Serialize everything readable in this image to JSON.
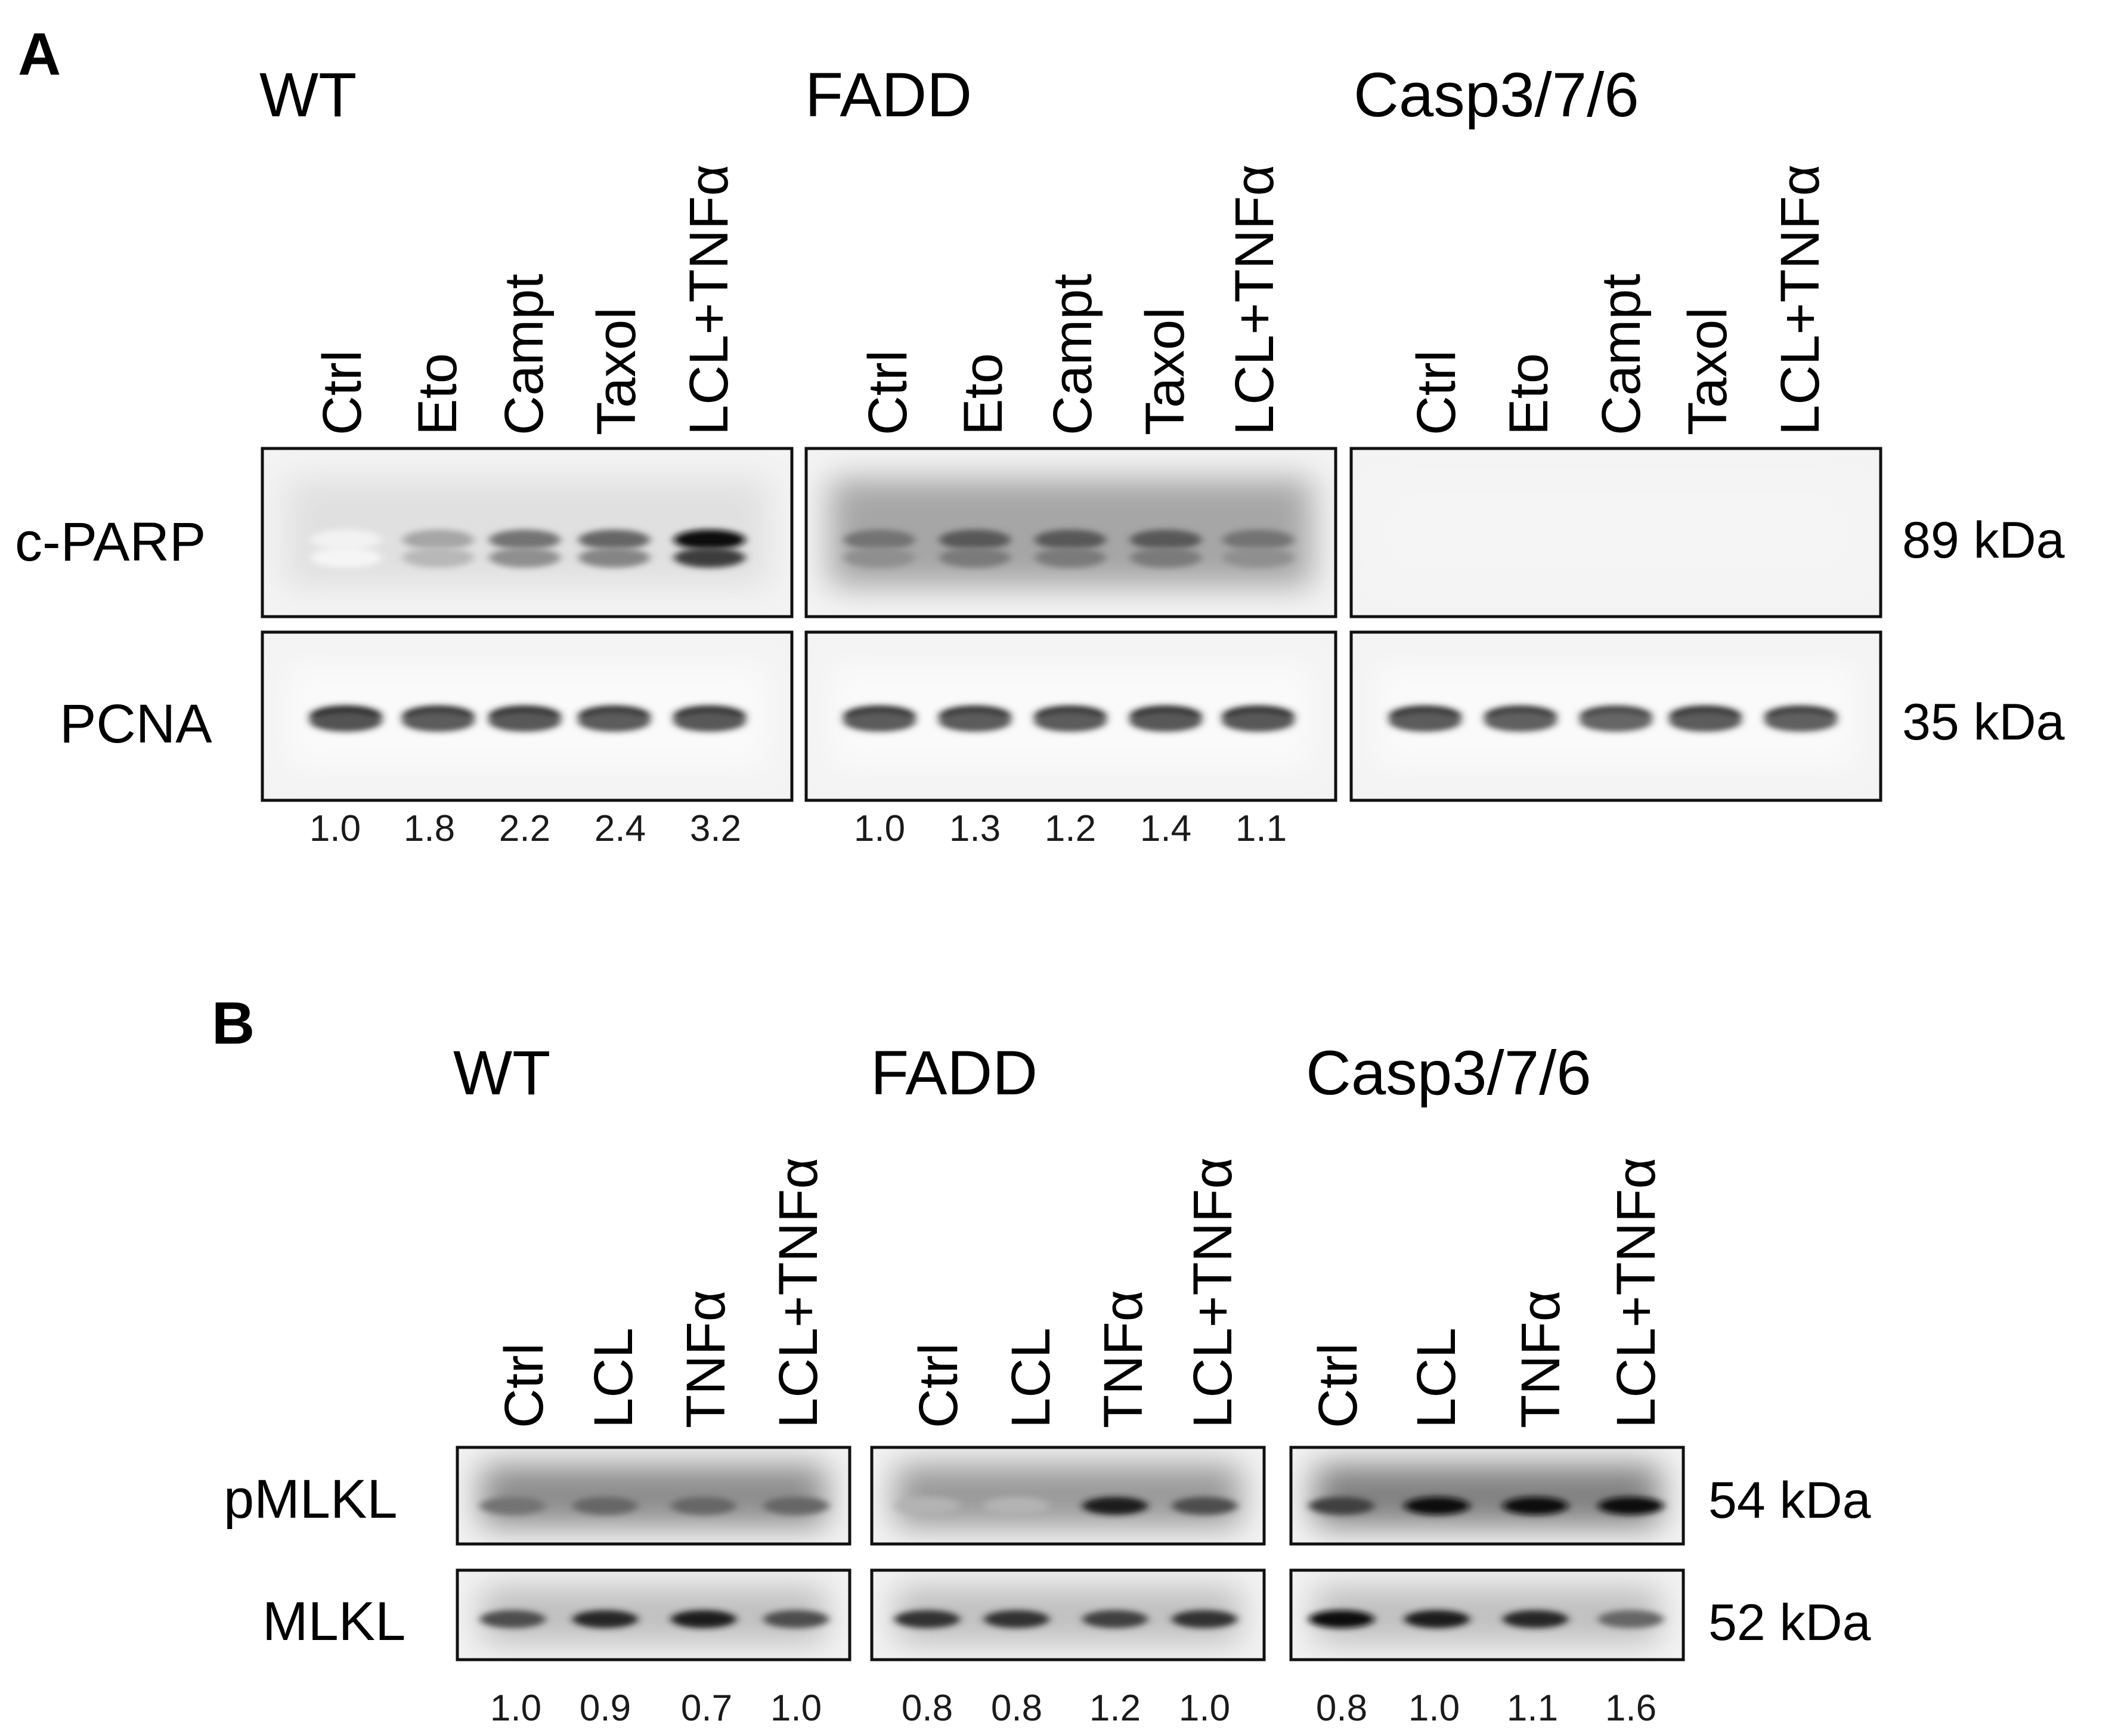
{
  "panels": [
    {
      "letter": "A",
      "groups": [
        {
          "title": "WT",
          "lanes": [
            "Ctrl",
            "Eto",
            "Campt",
            "Taxol",
            "LCL+TNFα"
          ],
          "blots": [
            {
              "protein": "c-PARP",
              "band_intensity": [
                0.05,
                0.35,
                0.55,
                0.6,
                0.95
              ],
              "smear": 0.12
            },
            {
              "protein": "PCNA",
              "band_intensity": [
                0.85,
                0.8,
                0.82,
                0.8,
                0.82
              ],
              "smear": 0.02
            }
          ],
          "quant": [
            "1.0",
            "1.8",
            "2.2",
            "2.4",
            "3.2"
          ]
        },
        {
          "title": "FADD",
          "lanes": [
            "Ctrl",
            "Eto",
            "Campt",
            "Taxol",
            "LCL+TNFα"
          ],
          "blots": [
            {
              "protein": "c-PARP",
              "band_intensity": [
                0.55,
                0.65,
                0.65,
                0.65,
                0.55
              ],
              "smear": 0.35
            },
            {
              "protein": "PCNA",
              "band_intensity": [
                0.8,
                0.8,
                0.8,
                0.82,
                0.82
              ],
              "smear": 0.02
            }
          ],
          "quant": [
            "1.0",
            "1.3",
            "1.2",
            "1.4",
            "1.1"
          ]
        },
        {
          "title": "Casp3/7/6",
          "lanes": [
            "Ctrl",
            "Eto",
            "Campt",
            "Taxol",
            "LCL+TNFα"
          ],
          "blots": [
            {
              "protein": "c-PARP",
              "band_intensity": [
                0,
                0,
                0,
                0,
                0
              ],
              "smear": 0.04
            },
            {
              "protein": "PCNA",
              "band_intensity": [
                0.8,
                0.78,
                0.75,
                0.8,
                0.78
              ],
              "smear": 0.02
            }
          ],
          "quant": []
        }
      ],
      "rows": [
        {
          "label": "c-PARP",
          "kda": "89 kDa"
        },
        {
          "label": "PCNA",
          "kda": "35 kDa"
        }
      ]
    },
    {
      "letter": "B",
      "groups": [
        {
          "title": "WT",
          "lanes": [
            "Ctrl",
            "LCL",
            "TNFα",
            "LCL+TNFα"
          ],
          "blots": [
            {
              "protein": "pMLKL",
              "band_intensity": [
                0.55,
                0.6,
                0.6,
                0.6
              ],
              "smear": 0.45
            },
            {
              "protein": "MLKL",
              "band_intensity": [
                0.7,
                0.85,
                0.9,
                0.7
              ],
              "smear": 0.25
            }
          ],
          "quant": [
            "1.0",
            "0.9",
            "0.7",
            "1.0"
          ]
        },
        {
          "title": "FADD",
          "lanes": [
            "Ctrl",
            "LCL",
            "TNFα",
            "LCL+TNFα"
          ],
          "blots": [
            {
              "protein": "pMLKL",
              "band_intensity": [
                0.3,
                0.3,
                0.9,
                0.7
              ],
              "smear": 0.4
            },
            {
              "protein": "MLKL",
              "band_intensity": [
                0.8,
                0.8,
                0.75,
                0.8
              ],
              "smear": 0.25
            }
          ],
          "quant": [
            "0.8",
            "0.8",
            "1.2",
            "1.0"
          ]
        },
        {
          "title": "Casp3/7/6",
          "lanes": [
            "Ctrl",
            "LCL",
            "TNFα",
            "LCL+TNFα"
          ],
          "blots": [
            {
              "protein": "pMLKL",
              "band_intensity": [
                0.75,
                0.95,
                0.95,
                0.95
              ],
              "smear": 0.5
            },
            {
              "protein": "MLKL",
              "band_intensity": [
                0.95,
                0.9,
                0.85,
                0.6
              ],
              "smear": 0.25
            }
          ],
          "quant": [
            "0.8",
            "1.0",
            "1.1",
            "1.6"
          ]
        }
      ],
      "rows": [
        {
          "label": "pMLKL",
          "kda": "54 kDa"
        },
        {
          "label": "MLKL",
          "kda": "52 kDa"
        }
      ]
    }
  ]
}
